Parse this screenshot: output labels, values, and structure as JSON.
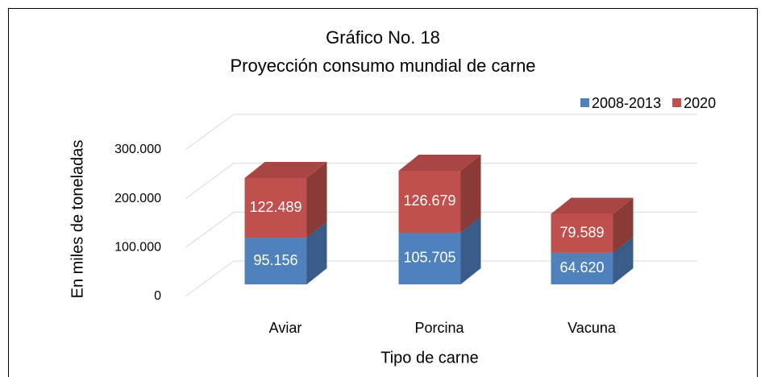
{
  "chart_data": {
    "type": "bar3d_stacked",
    "title": "Gráfico No. 18",
    "subtitle": "Proyección consumo mundial de carne",
    "y_label": "En miles de toneladas",
    "x_label": "Tipo de carne",
    "categories": [
      "Aviar",
      "Porcina",
      "Vacuna"
    ],
    "series": [
      {
        "name": "2008-2013",
        "color": "#4f81bd",
        "values": [
          95156,
          105705,
          64620
        ],
        "value_labels": [
          "95.156",
          "105.705",
          "64.620"
        ]
      },
      {
        "name": "2020",
        "color": "#c0504d",
        "values": [
          122489,
          126679,
          79589
        ],
        "value_labels": [
          "122.489",
          "126.679",
          "79.589"
        ]
      }
    ],
    "ylim": [
      0,
      300000
    ],
    "yticks": [
      0,
      {
        "value": 100000,
        "label": "100.000"
      },
      {
        "value": 200000,
        "label": "200.000"
      },
      {
        "value": 300000,
        "label": "300.000"
      }
    ],
    "grid": true,
    "legend": "top-right"
  }
}
